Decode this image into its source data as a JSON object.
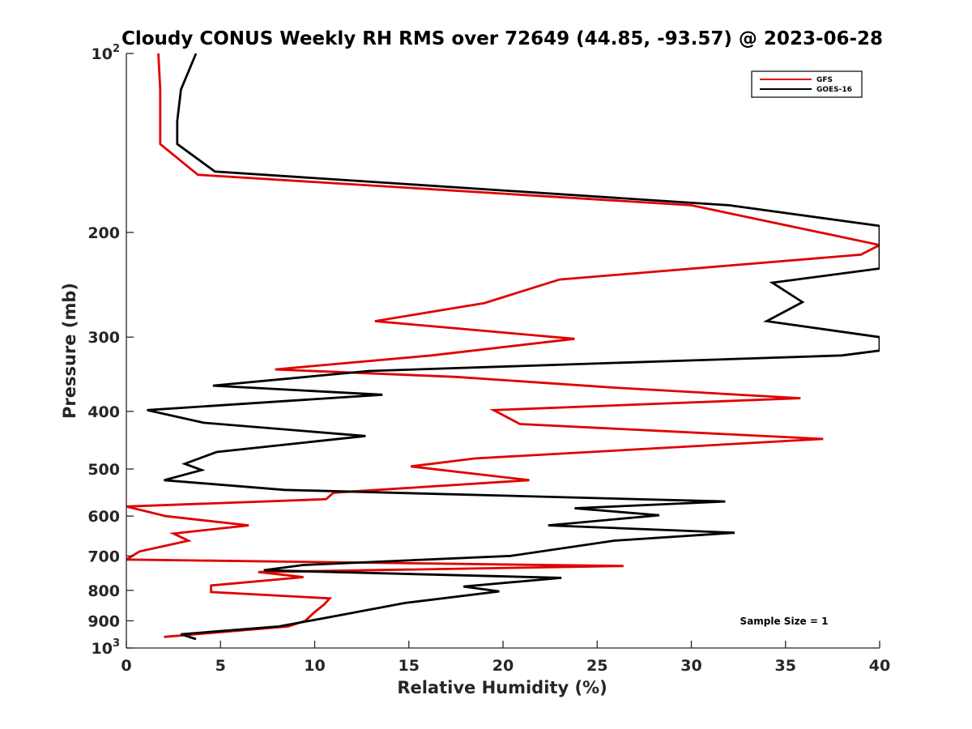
{
  "chart_data": {
    "type": "line",
    "title": "Cloudy CONUS Weekly RH RMS over 72649 (44.85, -93.57) @ 2023-06-28",
    "xlabel": "Relative Humidity (%)",
    "ylabel": "Pressure (mb)",
    "xlim": [
      0,
      40
    ],
    "ylim": [
      100,
      1000
    ],
    "y_scale": "log",
    "y_reversed": true,
    "x_ticks": [
      0,
      5,
      10,
      15,
      20,
      25,
      30,
      35,
      40
    ],
    "x_tick_labels": [
      "0",
      "5",
      "10",
      "15",
      "20",
      "25",
      "30",
      "35",
      "40"
    ],
    "y_ticks": [
      {
        "value": 100,
        "base": "10",
        "sup": "2"
      },
      {
        "value": 200,
        "base": "200",
        "sup": ""
      },
      {
        "value": 300,
        "base": "300",
        "sup": ""
      },
      {
        "value": 400,
        "base": "400",
        "sup": ""
      },
      {
        "value": 500,
        "base": "500",
        "sup": ""
      },
      {
        "value": 600,
        "base": "600",
        "sup": ""
      },
      {
        "value": 700,
        "base": "700",
        "sup": ""
      },
      {
        "value": 800,
        "base": "800",
        "sup": ""
      },
      {
        "value": 900,
        "base": "900",
        "sup": ""
      },
      {
        "value": 1000,
        "base": "10",
        "sup": "3"
      }
    ],
    "grid": false,
    "legend_position": "top-right",
    "annotation": "Sample Size = 1",
    "series": [
      {
        "name": "GFS",
        "color": "#e00000",
        "points": [
          [
            1.7,
            100
          ],
          [
            1.8,
            115
          ],
          [
            1.8,
            130
          ],
          [
            1.8,
            142
          ],
          [
            3.8,
            160
          ],
          [
            30,
            180
          ],
          [
            40,
            210
          ],
          [
            39,
            218
          ],
          [
            23,
            240
          ],
          [
            19,
            263
          ],
          [
            13.2,
            282
          ],
          [
            23.8,
            302
          ],
          [
            16.2,
            322
          ],
          [
            7.9,
            340
          ],
          [
            17.5,
            350
          ],
          [
            26,
            365
          ],
          [
            35.8,
            380
          ],
          [
            19.5,
            398
          ],
          [
            20.9,
            420
          ],
          [
            37,
            445
          ],
          [
            18.5,
            480
          ],
          [
            15.1,
            495
          ],
          [
            21.4,
            522
          ],
          [
            11,
            548
          ],
          [
            10.6,
            562
          ],
          [
            0,
            578
          ],
          [
            2.1,
            600
          ],
          [
            6.5,
            622
          ],
          [
            2.5,
            642
          ],
          [
            3.3,
            660
          ],
          [
            0.7,
            688
          ],
          [
            0,
            710
          ],
          [
            26.4,
            728
          ],
          [
            7,
            745
          ],
          [
            9.4,
            760
          ],
          [
            4.5,
            785
          ],
          [
            4.5,
            805
          ],
          [
            10.8,
            825
          ],
          [
            10.5,
            845
          ],
          [
            10,
            870
          ],
          [
            9.5,
            900
          ],
          [
            8.6,
            920
          ],
          [
            2,
            958
          ]
        ]
      },
      {
        "name": "GOES-16",
        "color": "#000000",
        "points": [
          [
            3.7,
            100
          ],
          [
            2.9,
            115
          ],
          [
            2.7,
            130
          ],
          [
            2.7,
            142
          ],
          [
            4.7,
            158
          ],
          [
            32,
            180
          ],
          [
            40,
            195
          ],
          [
            40,
            230
          ],
          [
            34.3,
            243
          ],
          [
            35.9,
            262
          ],
          [
            34,
            282
          ],
          [
            40,
            300
          ],
          [
            40,
            316
          ],
          [
            38,
            322
          ],
          [
            12.9,
            342
          ],
          [
            4.6,
            362
          ],
          [
            13.6,
            375
          ],
          [
            1.1,
            398
          ],
          [
            4.1,
            418
          ],
          [
            12.7,
            440
          ],
          [
            4.8,
            468
          ],
          [
            3.1,
            490
          ],
          [
            4,
            502
          ],
          [
            2,
            522
          ],
          [
            8.4,
            542
          ],
          [
            31.8,
            567
          ],
          [
            23.8,
            582
          ],
          [
            28.3,
            598
          ],
          [
            22.4,
            622
          ],
          [
            32.3,
            640
          ],
          [
            25.9,
            660
          ],
          [
            20.4,
            700
          ],
          [
            9.4,
            725
          ],
          [
            7.3,
            740
          ],
          [
            23.1,
            762
          ],
          [
            17.9,
            788
          ],
          [
            19.8,
            803
          ],
          [
            14.8,
            840
          ],
          [
            11.4,
            880
          ],
          [
            8.1,
            920
          ],
          [
            2.9,
            948
          ],
          [
            3.7,
            966
          ]
        ]
      }
    ]
  }
}
